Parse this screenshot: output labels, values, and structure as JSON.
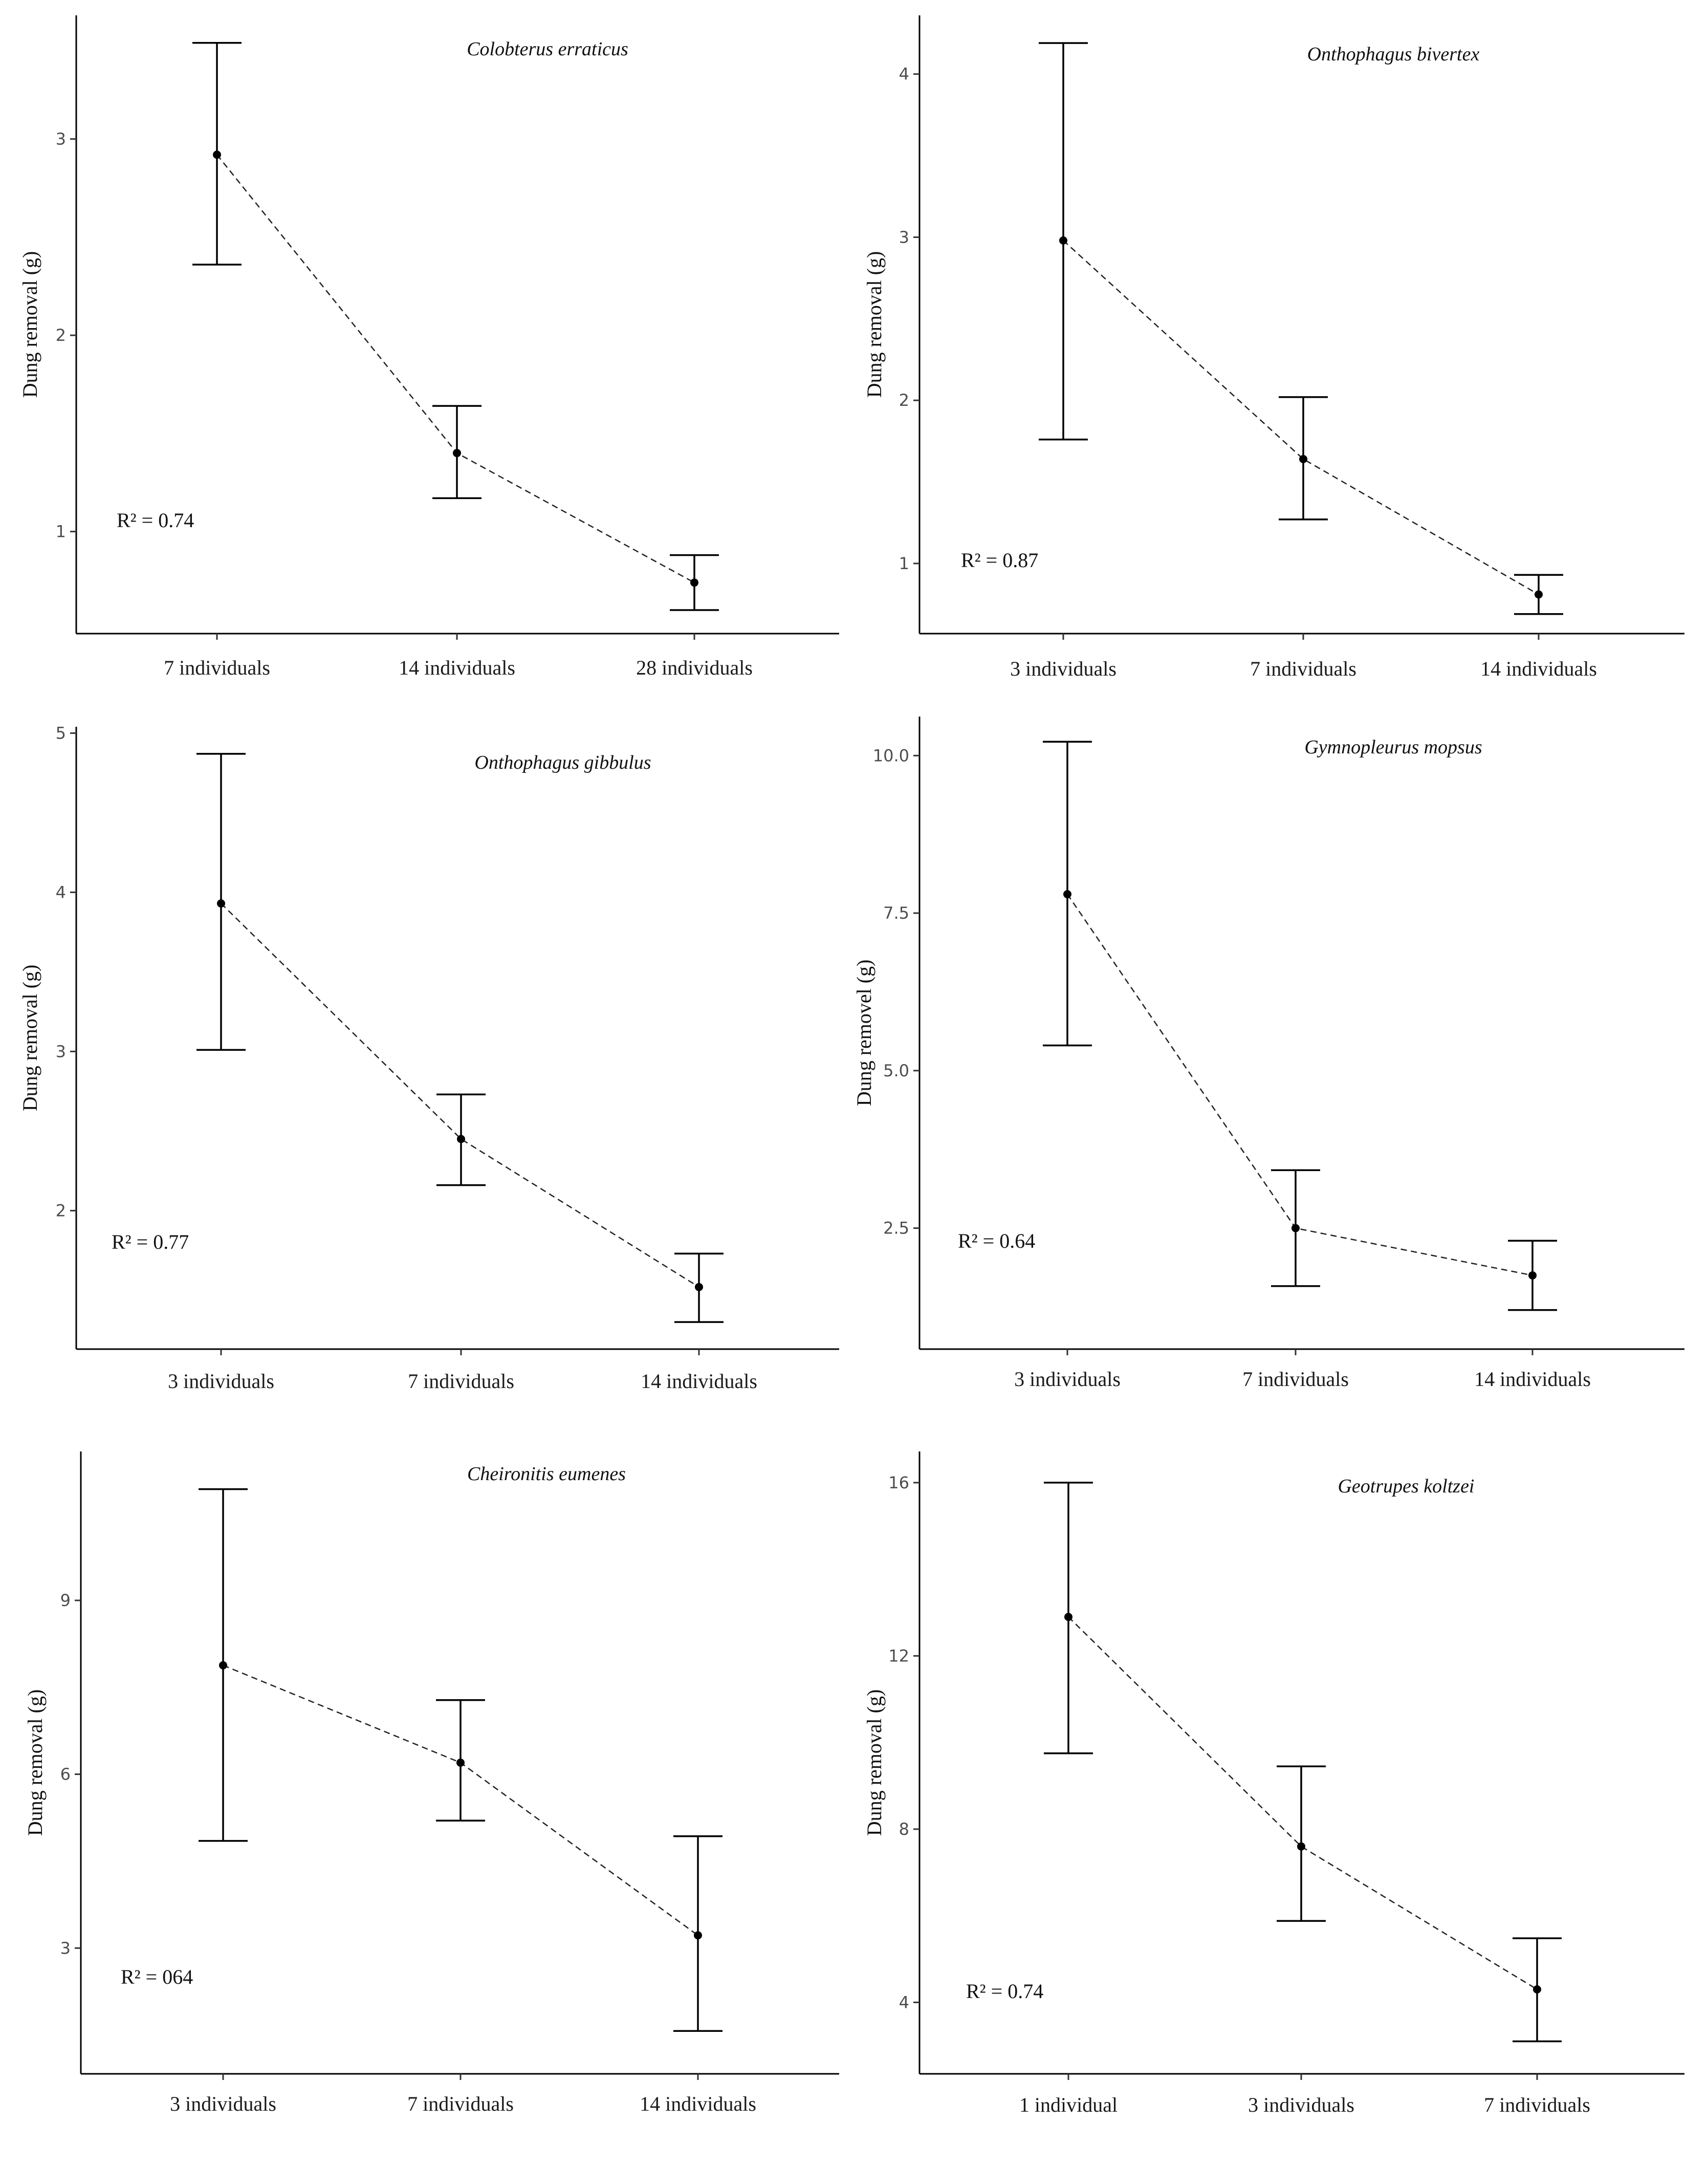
{
  "chart_data": [
    {
      "type": "line",
      "title": "Colobterus erraticus",
      "ylabel": "Dung removal (g)",
      "categories": [
        "7 individuals",
        "14 individuals",
        "28 individuals"
      ],
      "values": [
        2.92,
        1.4,
        0.74
      ],
      "error_low": [
        2.36,
        1.17,
        0.6
      ],
      "error_high": [
        3.49,
        1.64,
        0.88
      ],
      "r2_label": "R² = 0.74",
      "yticks": [
        1,
        2,
        3
      ],
      "ylim": [
        0.48,
        3.63
      ]
    },
    {
      "type": "line",
      "title": "Onthophagus bivertex",
      "ylabel": "Dung removal (g)",
      "categories": [
        "3 individuals",
        "7 individuals",
        "14 individuals"
      ],
      "values": [
        2.98,
        1.64,
        0.81
      ],
      "error_low": [
        1.76,
        1.27,
        0.69
      ],
      "error_high": [
        4.19,
        2.02,
        0.93
      ],
      "r2_label": "R² = 0.87",
      "yticks": [
        1,
        2,
        3,
        4
      ],
      "ylim": [
        0.57,
        4.36
      ]
    },
    {
      "type": "line",
      "title": "Onthophagus gibbulus",
      "ylabel": "Dung removal (g)",
      "categories": [
        "3 individuals",
        "7 individuals",
        "14 individuals"
      ],
      "values": [
        3.93,
        2.45,
        1.52
      ],
      "error_low": [
        3.01,
        2.16,
        1.3
      ],
      "error_high": [
        4.87,
        2.73,
        1.73
      ],
      "r2_label": "R² = 0.77",
      "yticks": [
        2,
        3,
        4,
        5
      ],
      "ylim": [
        1.13,
        5.04
      ]
    },
    {
      "type": "line",
      "title": "Gymnopleurus mopsus",
      "ylabel": "Dung removel (g)",
      "categories": [
        "3 individuals",
        "7 individuals",
        "14 individuals"
      ],
      "values": [
        7.8,
        2.5,
        1.75
      ],
      "error_low": [
        5.4,
        1.58,
        1.2
      ],
      "error_high": [
        10.22,
        3.42,
        2.3
      ],
      "r2_label": "R² = 0.64",
      "yticks": [
        2.5,
        5.0,
        7.5,
        10.0
      ],
      "yticklabels": [
        "2.5",
        "5.0",
        "7.5",
        "10.0"
      ],
      "ylim": [
        0.58,
        10.62
      ]
    },
    {
      "type": "line",
      "title": "Cheironitis eumenes",
      "ylabel": "Dung removal (g)",
      "categories": [
        "3 individuals",
        "7 individuals",
        "14 individuals"
      ],
      "values": [
        7.88,
        6.2,
        3.22
      ],
      "error_low": [
        4.85,
        5.2,
        1.57
      ],
      "error_high": [
        10.92,
        7.28,
        4.93
      ],
      "r2_label": "R² = 064",
      "yticks": [
        3,
        6,
        9
      ],
      "ylim": [
        0.83,
        11.57
      ]
    },
    {
      "type": "line",
      "title": "Geotrupes koltzei",
      "ylabel": "Dung removal (g)",
      "categories": [
        "1 individual",
        "3 individuals",
        "7 individuals"
      ],
      "values": [
        12.9,
        7.6,
        4.3
      ],
      "error_low": [
        9.75,
        5.88,
        3.1
      ],
      "error_high": [
        16.0,
        9.45,
        5.48
      ],
      "r2_label": "R² = 0.74",
      "yticks": [
        4,
        8,
        12,
        16
      ],
      "ylim": [
        2.35,
        16.72
      ]
    }
  ]
}
